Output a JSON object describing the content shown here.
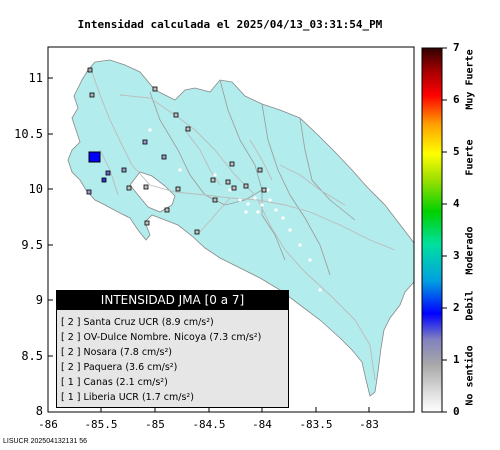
{
  "title": "Intensidad calculada el 2025/04/13_03:31:54_PM",
  "footer": "LISUCR 202504132131 56",
  "map": {
    "y_ticks": [
      "11",
      "10.5",
      "10",
      "9.5",
      "9",
      "8.5",
      "8"
    ],
    "x_ticks": [
      "-86",
      "-85.5",
      "-85",
      "-84.5",
      "-84",
      "-83.5",
      "-83"
    ],
    "lon_range": [
      -86,
      -82.65
    ],
    "lat_range": [
      8,
      11.25
    ],
    "sea_color": "#ffffff",
    "land_color": "#b3ecec",
    "border_color": "#999999",
    "road_color": "#bbbbbb",
    "epicenter_color": "#0000ff"
  },
  "colorbar": {
    "ticks": [
      "0",
      "1",
      "2",
      "3",
      "4",
      "5",
      "6",
      "7"
    ],
    "labels": [
      "No sentido",
      "Debil",
      "Moderado",
      "Fuerte",
      "Muy Fuerte"
    ]
  },
  "legend": {
    "title": "INTENSIDAD JMA [0 a 7]",
    "rows": [
      {
        "intensity": "[ 2 ]",
        "station": "Santa Cruz UCR",
        "value": "(8.9 cm/s²)"
      },
      {
        "intensity": "[ 2 ]",
        "station": "OV-Dulce Nombre. Nicoya",
        "value": "(7.3 cm/s²)"
      },
      {
        "intensity": "[ 2 ]",
        "station": "Nosara",
        "value": "(7.8 cm/s²)"
      },
      {
        "intensity": "[ 2 ]",
        "station": "Paquera",
        "value": "(3.6 cm/s²)"
      },
      {
        "intensity": "[ 1 ]",
        "station": "Canas",
        "value": "(2.1 cm/s²)"
      },
      {
        "intensity": "[ 1 ]",
        "station": "Liberia UCR",
        "value": "(1.7 cm/s²)"
      }
    ]
  }
}
